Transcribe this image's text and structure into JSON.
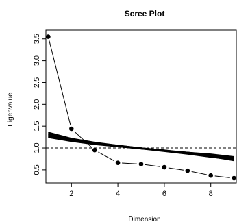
{
  "chart_data": {
    "type": "line",
    "title": "Scree Plot",
    "xlabel": "Dimension",
    "ylabel": "Eigenvalue",
    "xlim": [
      0.9,
      9.1
    ],
    "ylim": [
      0.2,
      3.7
    ],
    "x_ticks": [
      2,
      4,
      6,
      8
    ],
    "y_ticks": [
      0.5,
      1.0,
      1.5,
      2.0,
      2.5,
      3.0,
      3.5
    ],
    "y_tick_labels": [
      "0.5",
      "1.0",
      "1.5",
      "2.0",
      "2.5",
      "3.0",
      "3.5"
    ],
    "grid": false,
    "reference_line": {
      "y": 1.0,
      "style": "dashed"
    },
    "observed": {
      "x": [
        1,
        2,
        3,
        4,
        5,
        6,
        7,
        8,
        9
      ],
      "values": [
        3.55,
        1.44,
        0.95,
        0.66,
        0.63,
        0.56,
        0.48,
        0.37,
        0.31
      ]
    },
    "simulated": {
      "x": [
        1,
        2,
        3,
        4,
        5,
        6,
        7,
        8,
        9
      ],
      "lines": [
        [
          1.36,
          1.22,
          1.13,
          1.06,
          1.0,
          0.93,
          0.87,
          0.8,
          0.73
        ],
        [
          1.32,
          1.2,
          1.11,
          1.05,
          0.99,
          0.93,
          0.87,
          0.81,
          0.75
        ],
        [
          1.3,
          1.19,
          1.11,
          1.05,
          1.0,
          0.94,
          0.88,
          0.82,
          0.76
        ],
        [
          1.29,
          1.18,
          1.1,
          1.04,
          0.99,
          0.94,
          0.89,
          0.83,
          0.77
        ],
        [
          1.27,
          1.17,
          1.1,
          1.04,
          0.99,
          0.94,
          0.89,
          0.84,
          0.78
        ],
        [
          1.25,
          1.16,
          1.09,
          1.03,
          0.98,
          0.94,
          0.9,
          0.85,
          0.79
        ],
        [
          1.24,
          1.15,
          1.08,
          1.03,
          0.98,
          0.94,
          0.9,
          0.86,
          0.8
        ],
        [
          1.34,
          1.21,
          1.12,
          1.06,
          1.0,
          0.95,
          0.88,
          0.8,
          0.71
        ],
        [
          1.31,
          1.19,
          1.1,
          1.04,
          0.98,
          0.92,
          0.86,
          0.79,
          0.73
        ],
        [
          1.28,
          1.18,
          1.11,
          1.05,
          1.0,
          0.95,
          0.89,
          0.83,
          0.76
        ],
        [
          1.26,
          1.16,
          1.09,
          1.04,
          0.99,
          0.95,
          0.9,
          0.84,
          0.78
        ],
        [
          1.33,
          1.2,
          1.12,
          1.05,
          0.99,
          0.93,
          0.88,
          0.81,
          0.74
        ]
      ]
    }
  }
}
